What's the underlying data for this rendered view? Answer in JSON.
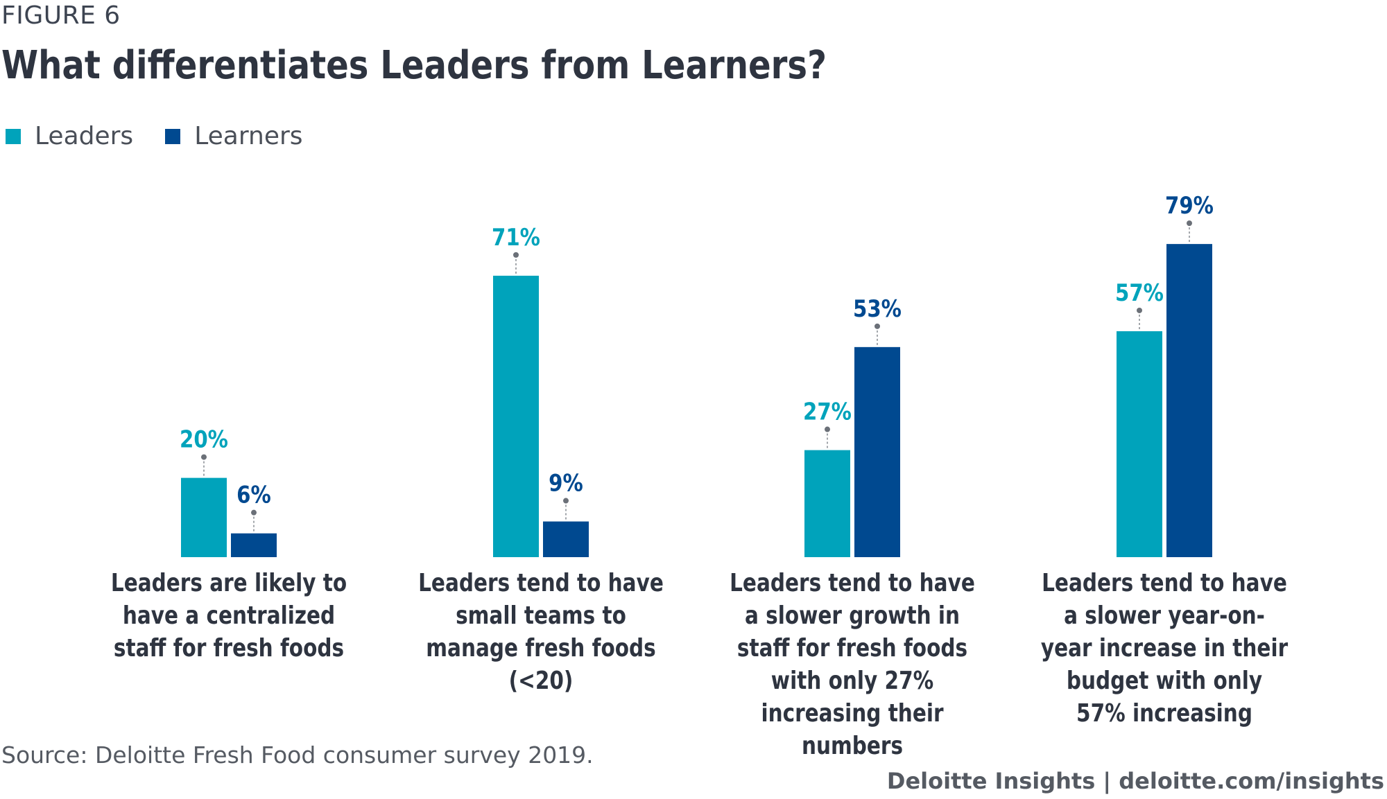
{
  "figure_label": "FIGURE 6",
  "chart_data": {
    "type": "bar",
    "title": "What differentiates Leaders from Learners?",
    "categories": [
      "Leaders are likely to have a centralized staff for fresh foods",
      "Leaders tend to have small teams to manage fresh foods (<20)",
      "Leaders tend to have a slower growth in staff for fresh foods with only 27% increasing their numbers",
      "Leaders tend to have a slower year-on-year increase in their budget with only 57% increasing"
    ],
    "series": [
      {
        "name": "Leaders",
        "values": [
          20,
          71,
          27,
          57
        ],
        "labels": [
          "20%",
          "71%",
          "27%",
          "57%"
        ],
        "color": "#00a3bb"
      },
      {
        "name": "Learners",
        "values": [
          6,
          9,
          53,
          79
        ],
        "labels": [
          "6%",
          "9%",
          "53%",
          "79%"
        ],
        "color": "#004990"
      }
    ],
    "unit": "%",
    "ylim": [
      0,
      100
    ],
    "grid": false,
    "legend_position": "top-left"
  },
  "source": "Source: Deloitte Fresh Food consumer survey 2019.",
  "credit": "Deloitte Insights | deloitte.com/insights"
}
